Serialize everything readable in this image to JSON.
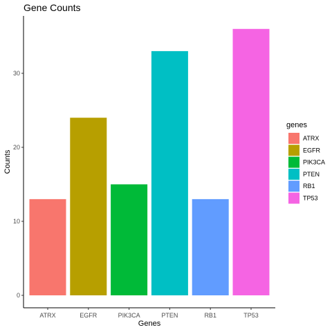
{
  "chart_data": {
    "type": "bar",
    "title": "Gene Counts",
    "xlabel": "Genes",
    "ylabel": "Counts",
    "categories": [
      "ATRX",
      "EGFR",
      "PIK3CA",
      "PTEN",
      "RB1",
      "TP53"
    ],
    "values": [
      13,
      24,
      15,
      33,
      13,
      36
    ],
    "colors": [
      "#F8766D",
      "#B79F00",
      "#00BA38",
      "#00BFC4",
      "#619CFF",
      "#F564E3"
    ],
    "yticks": [
      0,
      10,
      20,
      30
    ],
    "ylim": [
      0,
      37.8
    ],
    "grid": false,
    "legend": {
      "title": "genes",
      "position": "right",
      "entries": [
        "ATRX",
        "EGFR",
        "PIK3CA",
        "PTEN",
        "RB1",
        "TP53"
      ]
    }
  }
}
